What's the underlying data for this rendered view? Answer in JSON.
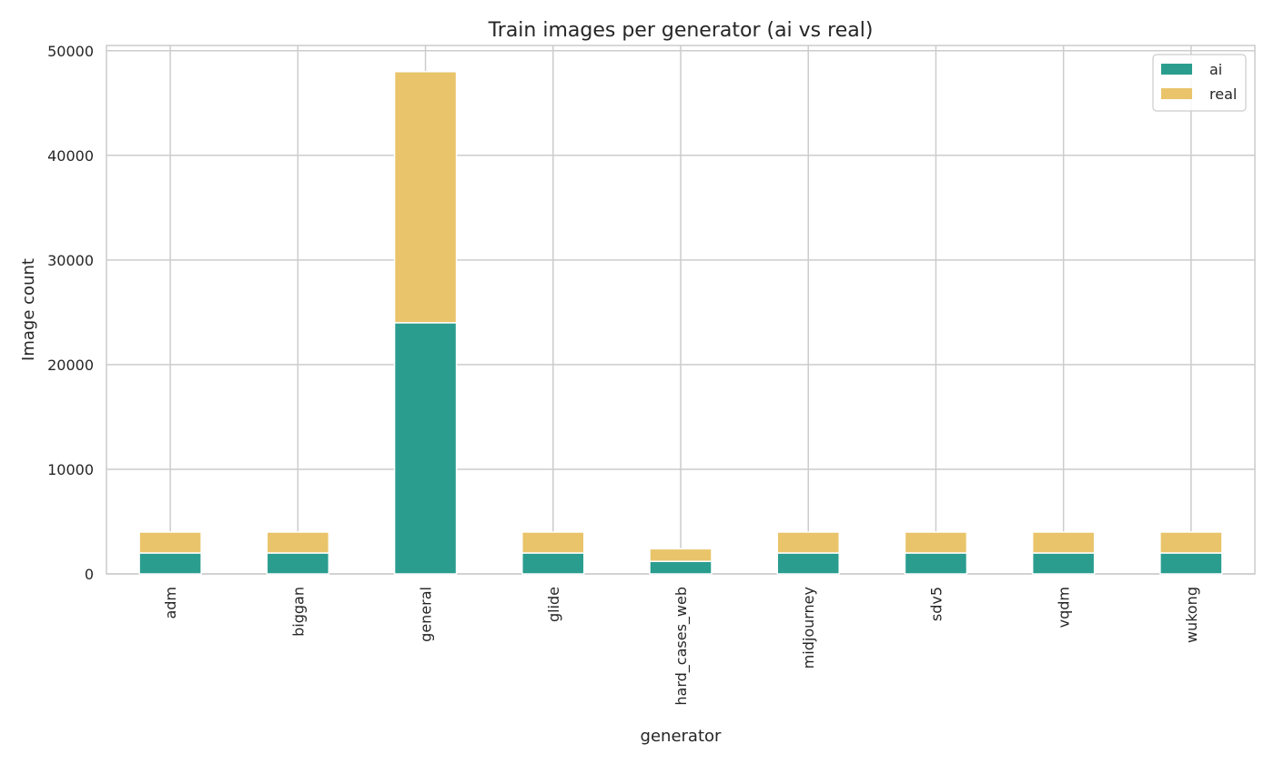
{
  "chart_data": {
    "type": "bar",
    "stacked": true,
    "title": "Train images per generator (ai vs real)",
    "xlabel": "generator",
    "ylabel": "Image count",
    "ylim": [
      0,
      50500
    ],
    "yticks": [
      0,
      10000,
      20000,
      30000,
      40000,
      50000
    ],
    "categories": [
      "adm",
      "biggan",
      "general",
      "glide",
      "hard_cases_web",
      "midjourney",
      "sdv5",
      "vqdm",
      "wukong"
    ],
    "series": [
      {
        "name": "ai",
        "color": "#2a9d8f",
        "values": [
          2000,
          2000,
          24000,
          2000,
          1200,
          2000,
          2000,
          2000,
          2000
        ]
      },
      {
        "name": "real",
        "color": "#e9c46a",
        "values": [
          2000,
          2000,
          24000,
          2000,
          1200,
          2000,
          2000,
          2000,
          2000
        ]
      }
    ],
    "grid": true,
    "legend_position": "top-right"
  }
}
